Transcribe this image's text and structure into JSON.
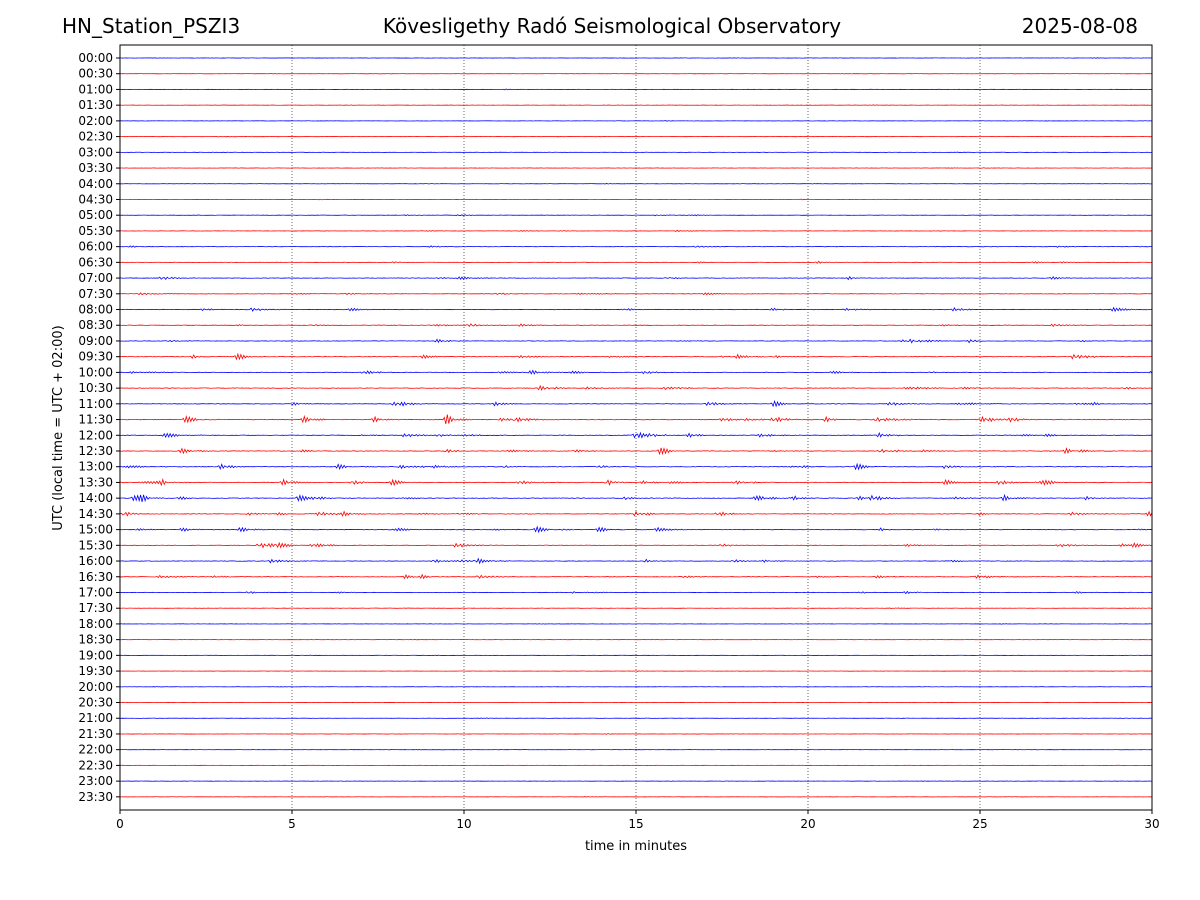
{
  "header": {
    "station": "HN_Station_PSZI3",
    "observatory": "Kövesligethy Radó Seismological Observatory",
    "date": "2025-08-08"
  },
  "chart_data": {
    "type": "line",
    "xlabel": "time in minutes",
    "ylabel": "UTC (local time = UTC + 02:00)",
    "xlim": [
      0,
      30
    ],
    "x_ticks": [
      "0",
      "5",
      "10",
      "15",
      "20",
      "25",
      "30"
    ],
    "x_tick_values": [
      0,
      5,
      10,
      15,
      20,
      25,
      30
    ],
    "vertical_grid": true,
    "row_colors": [
      "#0000ff",
      "#ff0000"
    ],
    "rows": [
      "00:00",
      "00:30",
      "01:00",
      "01:30",
      "02:00",
      "02:30",
      "03:00",
      "03:30",
      "04:00",
      "04:30",
      "05:00",
      "05:30",
      "06:00",
      "06:30",
      "07:00",
      "07:30",
      "08:00",
      "08:30",
      "09:00",
      "09:30",
      "10:00",
      "10:30",
      "11:00",
      "11:30",
      "12:00",
      "12:30",
      "13:00",
      "13:30",
      "14:00",
      "14:30",
      "15:00",
      "15:30",
      "16:00",
      "16:30",
      "17:00",
      "17:30",
      "18:00",
      "18:30",
      "19:00",
      "19:30",
      "20:00",
      "20:30",
      "21:00",
      "21:30",
      "22:00",
      "22:30",
      "23:00",
      "23:30"
    ],
    "activity_level": [
      0.3,
      0.3,
      0.4,
      0.3,
      0.3,
      0.3,
      0.4,
      0.3,
      0.4,
      0.5,
      0.6,
      0.6,
      0.8,
      0.8,
      1.2,
      1.2,
      1.3,
      1.2,
      1.3,
      1.5,
      1.5,
      1.5,
      1.5,
      2.2,
      1.8,
      1.8,
      1.8,
      2.0,
      1.9,
      1.8,
      1.7,
      1.5,
      1.4,
      1.5,
      1.1,
      0.4,
      0.3,
      0.3,
      0.3,
      0.3,
      0.3,
      0.3,
      0.3,
      0.3,
      0.3,
      0.3,
      0.3,
      0.3
    ],
    "events": [
      {
        "row": "05:00",
        "minute": 16.5,
        "amplitude": 0.6
      },
      {
        "row": "09:30",
        "minute": 3.4,
        "amplitude": 1.5
      },
      {
        "row": "11:00",
        "minute": 19.0,
        "amplitude": 1.4
      },
      {
        "row": "11:30",
        "minute": 9.5,
        "amplitude": 3.0
      },
      {
        "row": "11:30",
        "minute": 1.9,
        "amplitude": 1.6
      },
      {
        "row": "11:30",
        "minute": 7.4,
        "amplitude": 1.4
      },
      {
        "row": "12:00",
        "minute": 15.2,
        "amplitude": 1.6
      },
      {
        "row": "12:30",
        "minute": 15.7,
        "amplitude": 1.8
      },
      {
        "row": "12:30",
        "minute": 27.5,
        "amplitude": 1.5
      },
      {
        "row": "13:00",
        "minute": 21.4,
        "amplitude": 1.5
      },
      {
        "row": "13:00",
        "minute": 6.3,
        "amplitude": 1.2
      },
      {
        "row": "13:30",
        "minute": 26.7,
        "amplitude": 2.6
      },
      {
        "row": "13:30",
        "minute": 7.9,
        "amplitude": 1.5
      },
      {
        "row": "13:30",
        "minute": 15.9,
        "amplitude": 1.3
      },
      {
        "row": "14:00",
        "minute": 5.2,
        "amplitude": 1.5
      },
      {
        "row": "14:00",
        "minute": 25.7,
        "amplitude": 1.6
      },
      {
        "row": "14:00",
        "minute": 0.4,
        "amplitude": 1.3
      },
      {
        "row": "14:00",
        "minute": 21.5,
        "amplitude": 1.2
      },
      {
        "row": "14:30",
        "minute": 6.5,
        "amplitude": 1.5
      },
      {
        "row": "14:30",
        "minute": 29.9,
        "amplitude": 1.3
      },
      {
        "row": "15:00",
        "minute": 12.1,
        "amplitude": 1.4
      },
      {
        "row": "15:00",
        "minute": 13.9,
        "amplitude": 1.2
      },
      {
        "row": "15:30",
        "minute": 4.6,
        "amplitude": 1.5
      },
      {
        "row": "16:30",
        "minute": 8.3,
        "amplitude": 1.1
      }
    ]
  }
}
